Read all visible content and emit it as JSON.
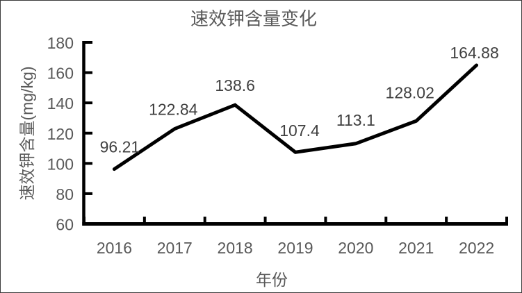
{
  "frame": {
    "background": "#ffffff",
    "border_color": "#3b3b3b"
  },
  "chart_data": {
    "type": "line",
    "title": "速效钾含量变化",
    "xlabel": "年份",
    "ylabel": "速效钾含量(mg/kg)",
    "categories": [
      "2016",
      "2017",
      "2018",
      "2019",
      "2020",
      "2021",
      "2022"
    ],
    "values": [
      96.21,
      122.84,
      138.6,
      107.4,
      113.1,
      128.02,
      164.88
    ],
    "data_labels": [
      "96.21",
      "122.84",
      "138.6",
      "107.4",
      "113.1",
      "128.02",
      "164.88"
    ],
    "y_ticks": [
      60,
      80,
      100,
      120,
      140,
      160,
      180
    ],
    "ylim": [
      60,
      180
    ],
    "grid": false,
    "legend": "none",
    "marker": "none",
    "line_color": "#000000",
    "axis_color": "#000000",
    "tick_label_color": "#595959",
    "data_label_color": "#404040",
    "title_color": "#595959"
  }
}
